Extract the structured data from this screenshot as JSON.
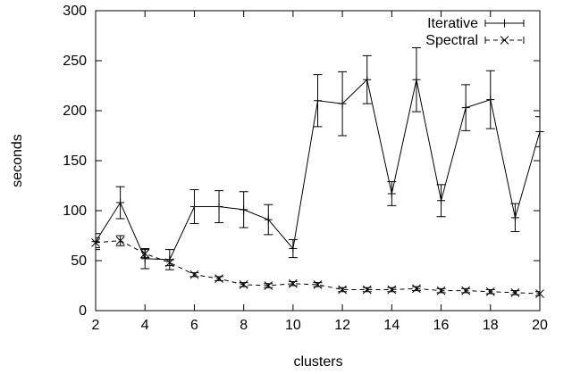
{
  "chart_data": {
    "type": "line",
    "title": "",
    "xlabel": "clusters",
    "ylabel": "seconds",
    "xlim": [
      2,
      20
    ],
    "ylim": [
      0,
      300
    ],
    "xticks": [
      2,
      4,
      6,
      8,
      10,
      12,
      14,
      16,
      18,
      20
    ],
    "yticks": [
      0,
      50,
      100,
      150,
      200,
      250,
      300
    ],
    "grid": false,
    "legend_position": "top-right",
    "x": [
      2,
      3,
      4,
      5,
      6,
      7,
      8,
      9,
      10,
      11,
      12,
      13,
      14,
      15,
      16,
      17,
      18,
      19,
      20
    ],
    "series": [
      {
        "name": "Iterative",
        "line_style": "solid",
        "marker": "plus",
        "values": [
          69,
          108,
          52,
          51,
          104,
          104,
          101,
          91,
          62,
          210,
          207,
          231,
          117,
          231,
          110,
          203,
          211,
          93,
          179
        ],
        "error": [
          8,
          16,
          10,
          10,
          17,
          16,
          18,
          15,
          9,
          26,
          32,
          24,
          12,
          32,
          16,
          23,
          29,
          14,
          15
        ]
      },
      {
        "name": "Spectral",
        "line_style": "dashed",
        "marker": "x",
        "values": [
          68,
          70,
          57,
          48,
          36,
          32,
          26,
          25,
          27,
          26,
          21,
          21,
          21,
          22,
          20,
          20,
          19,
          18,
          17
        ],
        "error": [
          5,
          5,
          4,
          3,
          2,
          2,
          2,
          2,
          2,
          2,
          2,
          2,
          2,
          2,
          2,
          2,
          2,
          2,
          2
        ]
      }
    ]
  }
}
